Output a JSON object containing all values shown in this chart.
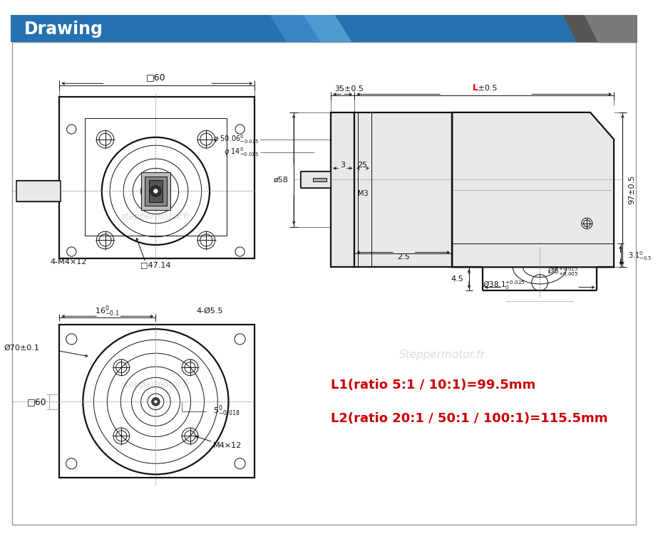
{
  "title": "Drawing",
  "title_bg_color": "#2672B0",
  "title_text_color": "#FFFFFF",
  "bg_color": "#FFFFFF",
  "line_color": "#111111",
  "red_color": "#CC0000",
  "ratio_text1": "L1(ratio 5:1 / 10:1)=99.5mm",
  "ratio_text2": "L2(ratio 20:1 / 50:1 / 100:1)=115.5mm",
  "wm1": "steppermotor.fr",
  "wm2": "Stepper\nMotor.fr",
  "wm3": "Steppermotor.fr"
}
